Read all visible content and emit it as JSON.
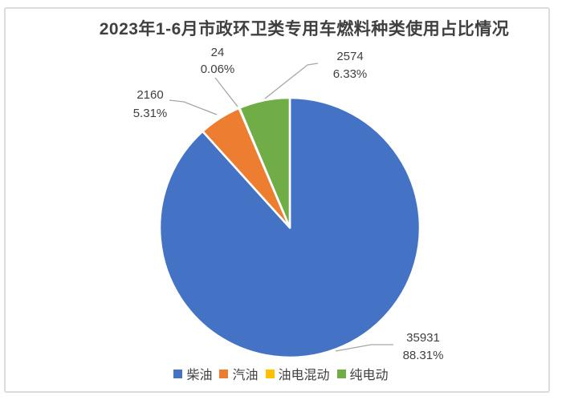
{
  "chart_data": {
    "type": "pie",
    "title": "2023年1-6月市政环卫类专用车燃料种类使用占比情况",
    "categories": [
      "柴油",
      "汽油",
      "油电混动",
      "纯电动"
    ],
    "values": [
      35931,
      2160,
      24,
      2574
    ],
    "percents": [
      88.31,
      5.31,
      0.06,
      6.33
    ],
    "colors": [
      "#4472C4",
      "#ED7D31",
      "#FFC000",
      "#70AD47"
    ],
    "data_labels": [
      {
        "value": "35931",
        "percent": "88.31%"
      },
      {
        "value": "2160",
        "percent": "5.31%"
      },
      {
        "value": "24",
        "percent": "0.06%"
      },
      {
        "value": "2574",
        "percent": "6.33%"
      }
    ],
    "start_angle_deg": 0,
    "direction": "clockwise",
    "legend_position": "bottom",
    "label_color": "#404040",
    "leader_line_color": "#a6a6a6",
    "background": "#ffffff",
    "frame_border_color": "#dcdcdc"
  }
}
